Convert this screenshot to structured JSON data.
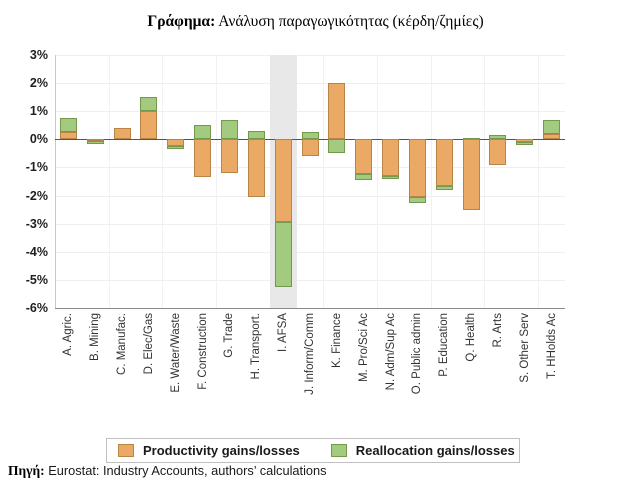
{
  "title": {
    "prefix": "Γράφημα:",
    "text": " Ανάλυση παραγωγικότητας (κέρδη/ζημίες)"
  },
  "legend": {
    "items": [
      {
        "label": "Productivity gains/losses"
      },
      {
        "label": "Reallocation gains/losses"
      }
    ]
  },
  "footer": {
    "prefix": "Πηγή:",
    "text": " Eurostat: Industry Accounts, authors’ calculations"
  },
  "chart_data": {
    "type": "bar",
    "stacked": true,
    "title": "Γράφημα: Ανάλυση παραγωγικότητας (κέρδη/ζημίες)",
    "categories": [
      "A. Agric.",
      "B. Mining",
      "C. Manufac.",
      "D. Elec/Gas",
      "E. Water/Waste",
      "F. Construction",
      "G. Trade",
      "H. Transport.",
      "I. AFSA",
      "J. Inform/Comm",
      "K. Finance",
      "M. Pro/Sci Ac",
      "N. Adm/Sup Ac",
      "O. Public admin",
      "P. Education",
      "Q. Health",
      "R. Arts",
      "S. Other Serv",
      "T. HHolds Ac"
    ],
    "series": [
      {
        "name": "Productivity gains/losses",
        "color": "#EAA965",
        "border_color": "#B98445",
        "values": [
          0.25,
          -0.05,
          0.4,
          1.0,
          -0.25,
          -1.35,
          -1.2,
          -2.05,
          -2.95,
          -0.6,
          2.0,
          -1.25,
          -1.3,
          -2.05,
          -1.65,
          -2.5,
          -0.9,
          -0.1,
          0.2
        ]
      },
      {
        "name": "Reallocation gains/losses",
        "color": "#A3CB80",
        "border_color": "#74984E",
        "values": [
          0.5,
          -0.1,
          0.0,
          0.5,
          -0.1,
          0.5,
          0.7,
          0.3,
          -2.3,
          0.25,
          -0.5,
          -0.2,
          -0.1,
          -0.2,
          -0.15,
          0.05,
          0.15,
          -0.1,
          0.5
        ]
      }
    ],
    "ylim": [
      -6,
      3
    ],
    "ytick_step": 1,
    "ytick_suffix": "%",
    "grid": true,
    "highlight_category": "I. AFSA",
    "highlight_color": "#E8E8E8",
    "zero_line_color": "#565656",
    "legend_position": "bottom"
  }
}
